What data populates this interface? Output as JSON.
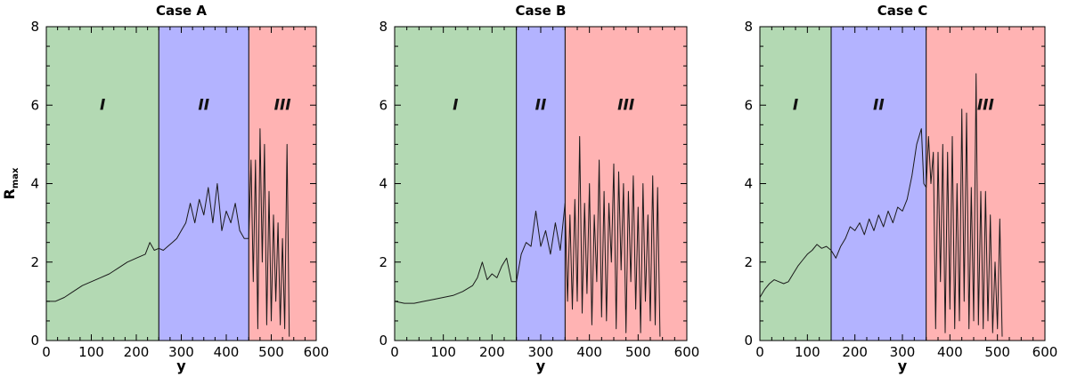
{
  "chart_data": [
    {
      "type": "line",
      "title": "Case A",
      "xlabel": "y",
      "ylabel": "R",
      "ylabel_sub": "max",
      "xlim": [
        0,
        600
      ],
      "ylim": [
        0,
        8
      ],
      "xticks": [
        0,
        100,
        200,
        300,
        400,
        500,
        600
      ],
      "yticks": [
        0,
        2,
        4,
        6,
        8
      ],
      "grid": false,
      "regions": [
        {
          "label": "I",
          "start": 0,
          "end": 250,
          "color": "#b3d9b3"
        },
        {
          "label": "II",
          "start": 250,
          "end": 450,
          "color": "#b3b3ff"
        },
        {
          "label": "III",
          "start": 450,
          "end": 600,
          "color": "#ffb3b3"
        }
      ],
      "boundaries": [
        250,
        450
      ],
      "series": [
        {
          "color": "#1a1a1a",
          "points": [
            [
              0,
              1.0
            ],
            [
              20,
              1.0
            ],
            [
              40,
              1.1
            ],
            [
              60,
              1.25
            ],
            [
              80,
              1.4
            ],
            [
              100,
              1.5
            ],
            [
              120,
              1.6
            ],
            [
              140,
              1.7
            ],
            [
              160,
              1.85
            ],
            [
              180,
              2.0
            ],
            [
              200,
              2.1
            ],
            [
              220,
              2.2
            ],
            [
              230,
              2.5
            ],
            [
              240,
              2.3
            ],
            [
              250,
              2.35
            ],
            [
              260,
              2.3
            ],
            [
              270,
              2.4
            ],
            [
              280,
              2.5
            ],
            [
              290,
              2.6
            ],
            [
              300,
              2.8
            ],
            [
              310,
              3.0
            ],
            [
              320,
              3.5
            ],
            [
              330,
              3.0
            ],
            [
              340,
              3.6
            ],
            [
              350,
              3.2
            ],
            [
              360,
              3.9
            ],
            [
              370,
              3.0
            ],
            [
              380,
              4.0
            ],
            [
              390,
              2.8
            ],
            [
              400,
              3.3
            ],
            [
              410,
              3.0
            ],
            [
              420,
              3.5
            ],
            [
              430,
              2.8
            ],
            [
              440,
              2.6
            ],
            [
              450,
              2.6
            ],
            [
              455,
              4.6
            ],
            [
              460,
              1.5
            ],
            [
              465,
              4.6
            ],
            [
              470,
              0.3
            ],
            [
              475,
              5.4
            ],
            [
              480,
              2.0
            ],
            [
              485,
              5.0
            ],
            [
              490,
              0.4
            ],
            [
              495,
              3.8
            ],
            [
              500,
              0.5
            ],
            [
              505,
              3.2
            ],
            [
              510,
              1.0
            ],
            [
              515,
              3.0
            ],
            [
              520,
              0.4
            ],
            [
              525,
              2.6
            ],
            [
              530,
              0.3
            ],
            [
              535,
              5.0
            ],
            [
              540,
              0.1
            ]
          ]
        }
      ]
    },
    {
      "type": "line",
      "title": "Case B",
      "xlabel": "y",
      "ylabel": "",
      "xlim": [
        0,
        600
      ],
      "ylim": [
        0,
        8
      ],
      "xticks": [
        0,
        100,
        200,
        300,
        400,
        500,
        600
      ],
      "yticks": [
        0,
        2,
        4,
        6,
        8
      ],
      "grid": false,
      "regions": [
        {
          "label": "I",
          "start": 0,
          "end": 250,
          "color": "#b3d9b3"
        },
        {
          "label": "II",
          "start": 250,
          "end": 350,
          "color": "#b3b3ff"
        },
        {
          "label": "III",
          "start": 350,
          "end": 600,
          "color": "#ffb3b3"
        }
      ],
      "boundaries": [
        250,
        350
      ],
      "series": [
        {
          "color": "#1a1a1a",
          "points": [
            [
              0,
              1.0
            ],
            [
              20,
              0.95
            ],
            [
              40,
              0.95
            ],
            [
              60,
              1.0
            ],
            [
              80,
              1.05
            ],
            [
              100,
              1.1
            ],
            [
              120,
              1.15
            ],
            [
              140,
              1.25
            ],
            [
              160,
              1.4
            ],
            [
              170,
              1.6
            ],
            [
              180,
              2.0
            ],
            [
              190,
              1.55
            ],
            [
              200,
              1.7
            ],
            [
              210,
              1.6
            ],
            [
              220,
              1.9
            ],
            [
              230,
              2.1
            ],
            [
              240,
              1.5
            ],
            [
              250,
              1.5
            ],
            [
              260,
              2.2
            ],
            [
              270,
              2.5
            ],
            [
              280,
              2.4
            ],
            [
              290,
              3.3
            ],
            [
              300,
              2.4
            ],
            [
              310,
              2.8
            ],
            [
              320,
              2.2
            ],
            [
              330,
              3.0
            ],
            [
              340,
              2.3
            ],
            [
              350,
              3.5
            ],
            [
              355,
              1.0
            ],
            [
              360,
              3.2
            ],
            [
              365,
              0.8
            ],
            [
              370,
              3.6
            ],
            [
              375,
              1.0
            ],
            [
              380,
              5.2
            ],
            [
              385,
              0.7
            ],
            [
              390,
              3.5
            ],
            [
              395,
              1.2
            ],
            [
              400,
              4.0
            ],
            [
              405,
              0.4
            ],
            [
              410,
              3.2
            ],
            [
              415,
              1.5
            ],
            [
              420,
              4.6
            ],
            [
              425,
              0.6
            ],
            [
              430,
              3.8
            ],
            [
              435,
              0.5
            ],
            [
              440,
              3.5
            ],
            [
              445,
              2.0
            ],
            [
              450,
              4.5
            ],
            [
              455,
              0.3
            ],
            [
              460,
              4.3
            ],
            [
              465,
              1.8
            ],
            [
              470,
              4.0
            ],
            [
              475,
              0.2
            ],
            [
              480,
              3.8
            ],
            [
              485,
              1.5
            ],
            [
              490,
              4.2
            ],
            [
              495,
              0.8
            ],
            [
              500,
              3.4
            ],
            [
              505,
              0.2
            ],
            [
              510,
              4.0
            ],
            [
              515,
              1.0
            ],
            [
              520,
              3.2
            ],
            [
              525,
              0.5
            ],
            [
              530,
              4.2
            ],
            [
              535,
              0.4
            ],
            [
              540,
              3.9
            ],
            [
              545,
              0.1
            ]
          ]
        }
      ]
    },
    {
      "type": "line",
      "title": "Case C",
      "xlabel": "y",
      "ylabel": "",
      "xlim": [
        0,
        600
      ],
      "ylim": [
        0,
        8
      ],
      "xticks": [
        0,
        100,
        200,
        300,
        400,
        500,
        600
      ],
      "yticks": [
        0,
        2,
        4,
        6,
        8
      ],
      "grid": false,
      "regions": [
        {
          "label": "I",
          "start": 0,
          "end": 150,
          "color": "#b3d9b3"
        },
        {
          "label": "II",
          "start": 150,
          "end": 350,
          "color": "#b3b3ff"
        },
        {
          "label": "III",
          "start": 350,
          "end": 600,
          "color": "#ffb3b3"
        }
      ],
      "boundaries": [
        150,
        350
      ],
      "series": [
        {
          "color": "#1a1a1a",
          "points": [
            [
              0,
              1.1
            ],
            [
              10,
              1.3
            ],
            [
              20,
              1.45
            ],
            [
              30,
              1.55
            ],
            [
              40,
              1.5
            ],
            [
              50,
              1.45
            ],
            [
              60,
              1.5
            ],
            [
              70,
              1.7
            ],
            [
              80,
              1.9
            ],
            [
              90,
              2.05
            ],
            [
              100,
              2.2
            ],
            [
              110,
              2.3
            ],
            [
              120,
              2.45
            ],
            [
              130,
              2.35
            ],
            [
              140,
              2.4
            ],
            [
              150,
              2.3
            ],
            [
              160,
              2.1
            ],
            [
              170,
              2.4
            ],
            [
              180,
              2.6
            ],
            [
              190,
              2.9
            ],
            [
              200,
              2.8
            ],
            [
              210,
              3.0
            ],
            [
              220,
              2.7
            ],
            [
              230,
              3.1
            ],
            [
              240,
              2.8
            ],
            [
              250,
              3.2
            ],
            [
              260,
              2.9
            ],
            [
              270,
              3.3
            ],
            [
              280,
              3.0
            ],
            [
              290,
              3.4
            ],
            [
              300,
              3.3
            ],
            [
              310,
              3.6
            ],
            [
              320,
              4.2
            ],
            [
              330,
              5.0
            ],
            [
              340,
              5.4
            ],
            [
              345,
              4.0
            ],
            [
              350,
              3.9
            ],
            [
              355,
              5.2
            ],
            [
              360,
              4.0
            ],
            [
              365,
              4.8
            ],
            [
              370,
              0.3
            ],
            [
              375,
              4.8
            ],
            [
              380,
              1.5
            ],
            [
              385,
              5.0
            ],
            [
              390,
              0.2
            ],
            [
              395,
              4.8
            ],
            [
              400,
              0.8
            ],
            [
              405,
              5.2
            ],
            [
              410,
              0.3
            ],
            [
              415,
              4.0
            ],
            [
              420,
              0.5
            ],
            [
              425,
              5.9
            ],
            [
              430,
              1.0
            ],
            [
              435,
              5.8
            ],
            [
              440,
              0.3
            ],
            [
              445,
              3.9
            ],
            [
              450,
              0.5
            ],
            [
              455,
              6.8
            ],
            [
              460,
              0.4
            ],
            [
              465,
              3.8
            ],
            [
              470,
              0.3
            ],
            [
              475,
              3.8
            ],
            [
              480,
              0.5
            ],
            [
              485,
              3.2
            ],
            [
              490,
              0.2
            ],
            [
              495,
              2.0
            ],
            [
              500,
              0.3
            ],
            [
              505,
              3.1
            ],
            [
              510,
              0.1
            ]
          ]
        }
      ]
    }
  ]
}
